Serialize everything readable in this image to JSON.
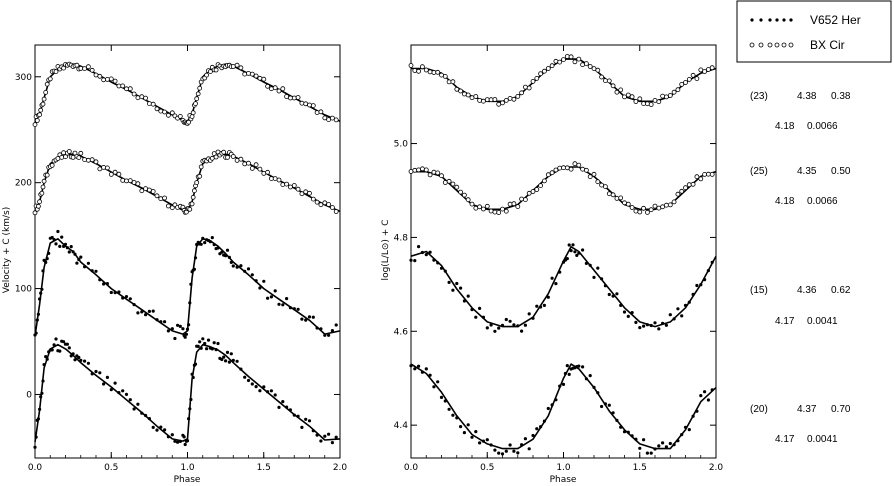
{
  "chart_data": [
    {
      "type": "line",
      "xlabel": "Phase",
      "ylabel": "Velocity + C (km/s)",
      "xlim": [
        0.0,
        2.0
      ],
      "ylim": [
        -60,
        330
      ],
      "x_ticks": [
        "0.0",
        "0.5",
        "1.0",
        "1.5",
        "2.0"
      ],
      "y_ticks": [
        "0",
        "100",
        "200",
        "300"
      ],
      "series": [
        {
          "name": "BX Cir",
          "offset": 255,
          "x": [
            0.0,
            0.03,
            0.06,
            0.1,
            0.15,
            0.2,
            0.25,
            0.3,
            0.4,
            0.5,
            0.6,
            0.7,
            0.8,
            0.9,
            0.97,
            1.0,
            1.03,
            1.06,
            1.1,
            1.15,
            1.2,
            1.25,
            1.3,
            1.4,
            1.5,
            1.6,
            1.7,
            1.8,
            1.9,
            2.0
          ],
          "y": [
            3,
            10,
            25,
            45,
            52,
            55,
            57,
            55,
            48,
            40,
            33,
            25,
            17,
            9,
            4,
            3,
            10,
            25,
            45,
            52,
            55,
            57,
            55,
            48,
            40,
            33,
            25,
            17,
            9,
            3
          ]
        },
        {
          "name": "BX Cir",
          "offset": 170,
          "x": [
            0.0,
            0.03,
            0.06,
            0.1,
            0.15,
            0.2,
            0.25,
            0.3,
            0.4,
            0.5,
            0.6,
            0.7,
            0.8,
            0.9,
            0.97,
            1.0,
            1.03,
            1.06,
            1.1,
            1.15,
            1.2,
            1.25,
            1.3,
            1.4,
            1.5,
            1.6,
            1.7,
            1.8,
            1.9,
            2.0
          ],
          "y": [
            3,
            12,
            30,
            48,
            53,
            56,
            57,
            55,
            48,
            40,
            32,
            25,
            17,
            9,
            4,
            3,
            12,
            30,
            48,
            53,
            56,
            57,
            55,
            48,
            40,
            32,
            25,
            17,
            9,
            3
          ]
        },
        {
          "name": "V652 Her",
          "offset": 55,
          "x": [
            0.0,
            0.03,
            0.06,
            0.1,
            0.15,
            0.2,
            0.25,
            0.3,
            0.4,
            0.5,
            0.6,
            0.7,
            0.8,
            0.9,
            0.97,
            1.0,
            1.03,
            1.06,
            1.1,
            1.15,
            1.2,
            1.25,
            1.3,
            1.4,
            1.5,
            1.6,
            1.7,
            1.8,
            1.9,
            2.0
          ],
          "y": [
            0,
            30,
            65,
            88,
            92,
            85,
            80,
            70,
            58,
            45,
            35,
            25,
            15,
            5,
            2,
            5,
            55,
            85,
            92,
            90,
            85,
            78,
            70,
            58,
            45,
            35,
            25,
            15,
            2,
            5
          ]
        },
        {
          "name": "V652 Her",
          "offset": -45,
          "x": [
            0.0,
            0.03,
            0.06,
            0.1,
            0.15,
            0.2,
            0.25,
            0.3,
            0.4,
            0.5,
            0.6,
            0.7,
            0.8,
            0.9,
            0.97,
            1.0,
            1.03,
            1.06,
            1.1,
            1.15,
            1.2,
            1.25,
            1.3,
            1.4,
            1.5,
            1.6,
            1.7,
            1.8,
            1.9,
            2.0
          ],
          "y": [
            0,
            30,
            70,
            88,
            92,
            88,
            82,
            75,
            63,
            52,
            40,
            28,
            15,
            3,
            1,
            3,
            60,
            85,
            92,
            90,
            87,
            82,
            75,
            62,
            50,
            38,
            26,
            15,
            2,
            3
          ]
        }
      ]
    },
    {
      "type": "line",
      "xlabel": "Phase",
      "ylabel": "log(L/L⊙) + C",
      "xlim": [
        0.0,
        2.0
      ],
      "ylim": [
        4.33,
        5.21
      ],
      "x_ticks": [
        "0.0",
        "0.5",
        "1.0",
        "1.5",
        "2.0"
      ],
      "y_ticks": [
        "4.4",
        "4.6",
        "4.8",
        "5.0"
      ],
      "series": [
        {
          "name": "BX Cir",
          "offset": 5.08,
          "x": [
            0.0,
            0.1,
            0.2,
            0.3,
            0.4,
            0.5,
            0.6,
            0.7,
            0.8,
            0.9,
            1.0,
            1.1,
            1.2,
            1.3,
            1.4,
            1.5,
            1.6,
            1.7,
            1.8,
            1.9,
            2.0
          ],
          "y": [
            0.08,
            0.08,
            0.07,
            0.04,
            0.02,
            0.01,
            0.01,
            0.02,
            0.05,
            0.08,
            0.1,
            0.1,
            0.08,
            0.05,
            0.02,
            0.01,
            0.01,
            0.02,
            0.05,
            0.07,
            0.08
          ]
        },
        {
          "name": "BX Cir",
          "offset": 4.85,
          "x": [
            0.0,
            0.1,
            0.2,
            0.3,
            0.4,
            0.5,
            0.6,
            0.7,
            0.8,
            0.9,
            1.0,
            1.1,
            1.2,
            1.3,
            1.4,
            1.5,
            1.6,
            1.7,
            1.8,
            1.9,
            2.0
          ],
          "y": [
            0.09,
            0.09,
            0.08,
            0.05,
            0.02,
            0.01,
            0.01,
            0.02,
            0.05,
            0.08,
            0.1,
            0.1,
            0.08,
            0.05,
            0.02,
            0.01,
            0.01,
            0.02,
            0.05,
            0.08,
            0.09
          ]
        },
        {
          "name": "V652 Her",
          "offset": 4.6,
          "x": [
            0.0,
            0.1,
            0.2,
            0.3,
            0.4,
            0.5,
            0.6,
            0.7,
            0.8,
            0.9,
            1.0,
            1.05,
            1.1,
            1.2,
            1.3,
            1.4,
            1.5,
            1.6,
            1.7,
            1.8,
            1.9,
            2.0
          ],
          "y": [
            0.16,
            0.17,
            0.14,
            0.09,
            0.05,
            0.02,
            0.01,
            0.01,
            0.03,
            0.08,
            0.15,
            0.18,
            0.17,
            0.13,
            0.09,
            0.05,
            0.02,
            0.01,
            0.02,
            0.05,
            0.1,
            0.16
          ]
        },
        {
          "name": "V652 Her",
          "offset": 4.33,
          "x": [
            0.0,
            0.1,
            0.2,
            0.3,
            0.4,
            0.5,
            0.6,
            0.7,
            0.8,
            0.9,
            1.0,
            1.05,
            1.1,
            1.2,
            1.3,
            1.4,
            1.5,
            1.6,
            1.7,
            1.8,
            1.9,
            2.0
          ],
          "y": [
            0.2,
            0.18,
            0.14,
            0.09,
            0.05,
            0.03,
            0.02,
            0.02,
            0.04,
            0.09,
            0.17,
            0.2,
            0.19,
            0.15,
            0.1,
            0.06,
            0.03,
            0.02,
            0.02,
            0.06,
            0.12,
            0.15
          ]
        }
      ]
    }
  ],
  "legend": {
    "entries": [
      {
        "label": "V652 Her",
        "marker": "filled-dot"
      },
      {
        "label": "BX Cir",
        "marker": "open-circle"
      }
    ]
  },
  "parameters": [
    {
      "row1": [
        "(23)",
        "4.38",
        "0.38"
      ],
      "row2": [
        "4.18",
        "0.0066"
      ]
    },
    {
      "row1": [
        "(25)",
        "4.35",
        "0.50"
      ],
      "row2": [
        "4.18",
        "0.0066"
      ]
    },
    {
      "row1": [
        "(15)",
        "4.36",
        "0.62"
      ],
      "row2": [
        "4.17",
        "0.0041"
      ]
    },
    {
      "row1": [
        "(20)",
        "4.37",
        "0.70"
      ],
      "row2": [
        "4.17",
        "0.0041"
      ]
    }
  ]
}
